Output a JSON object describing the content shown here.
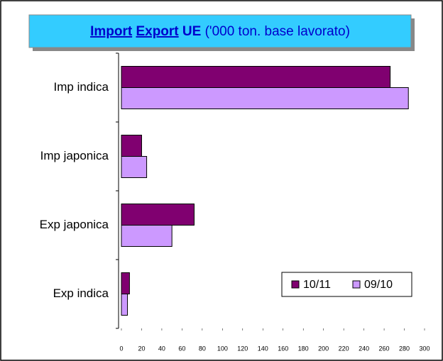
{
  "chart_data": {
    "type": "hbar",
    "title": [
      "Import",
      "Export",
      "UE",
      "('000 ton. base lavorato)"
    ],
    "categories": [
      "Imp indica",
      "Imp japonica",
      "Exp japonica",
      "Exp indica"
    ],
    "series": [
      {
        "name": "10/11",
        "color": "#800070",
        "values": [
          266,
          20,
          72,
          8
        ]
      },
      {
        "name": "09/10",
        "color": "#cc99ff",
        "values": [
          284,
          25,
          50,
          6
        ]
      }
    ],
    "xlim": [
      0,
      300
    ],
    "xticks": [
      0,
      20,
      40,
      60,
      80,
      100,
      120,
      140,
      160,
      180,
      200,
      220,
      240,
      260,
      280,
      300
    ],
    "legend": "lower right"
  }
}
